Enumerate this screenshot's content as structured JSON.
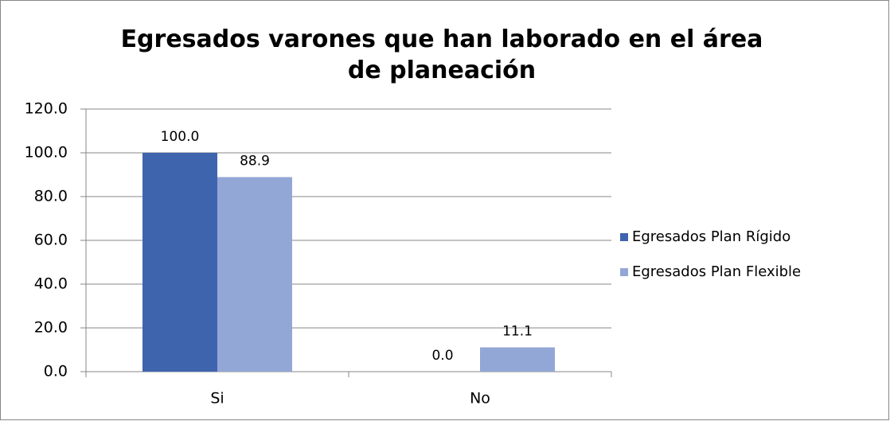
{
  "chart_data": {
    "type": "bar",
    "title": "Egresados varones que han laborado en el área de planeación",
    "categories": [
      "Si",
      "No"
    ],
    "series": [
      {
        "name": "Egresados Plan Rígido",
        "color": "#3f64ae",
        "values": [
          100,
          0
        ],
        "value_labels": [
          "100.0",
          "0.0"
        ]
      },
      {
        "name": "Egresados Plan Flexible",
        "color": "#93a7d6",
        "values": [
          88.9,
          11.1
        ],
        "value_labels": [
          "88.9",
          "11.1"
        ]
      }
    ],
    "ylim": [
      0,
      120
    ],
    "yticks": [
      {
        "value": 0,
        "label": "0.0"
      },
      {
        "value": 20,
        "label": "20.0"
      },
      {
        "value": 40,
        "label": "40.0"
      },
      {
        "value": 60,
        "label": "60.0"
      },
      {
        "value": 80,
        "label": "80.0"
      },
      {
        "value": 100,
        "label": "100.0"
      },
      {
        "value": 120,
        "label": "120.0"
      }
    ],
    "grid": true,
    "legend": "right"
  }
}
